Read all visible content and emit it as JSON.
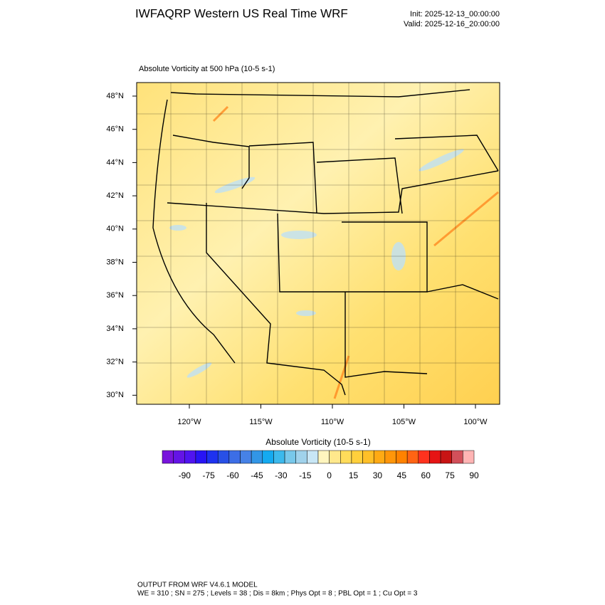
{
  "header": {
    "title": "IWFAQRP Western US Real Time WRF",
    "init": "Init: 2025-12-13_00:00:00",
    "valid": "Valid: 2025-12-16_20:00:00"
  },
  "map": {
    "title": "Absolute Vorticity at 500 hPa   (10-5 s-1)",
    "lat_labels": [
      "48°N",
      "46°N",
      "44°N",
      "42°N",
      "40°N",
      "38°N",
      "36°N",
      "34°N",
      "32°N",
      "30°N"
    ],
    "lon_labels": [
      "120°W",
      "115°W",
      "110°W",
      "105°W",
      "100°W"
    ]
  },
  "colorbar": {
    "title": "Absolute Vorticity  (10-5 s-1)",
    "labels": [
      -90,
      -75,
      -60,
      -45,
      -30,
      -15,
      0,
      15,
      30,
      45,
      60,
      75,
      90
    ],
    "colors": [
      "#7814dc",
      "#6414e6",
      "#5014f0",
      "#2814f5",
      "#1e32f0",
      "#2850e6",
      "#3c6ee6",
      "#4682e6",
      "#3296e6",
      "#14aaf0",
      "#3cb9ec",
      "#78c8ea",
      "#a0d2eb",
      "#c8e6f5",
      "#fff5be",
      "#ffe88c",
      "#ffdc5a",
      "#ffd03c",
      "#ffc028",
      "#ffaa14",
      "#ff960a",
      "#ff8200",
      "#ff6414",
      "#ff321e",
      "#e61414",
      "#c81414",
      "#d2505a",
      "#ffb4b4"
    ]
  },
  "footer": {
    "line1": "OUTPUT FROM WRF V4.6.1 MODEL",
    "line2": "WE = 310 ; SN = 275 ; Levels = 38 ; Dis = 8km ; Phys Opt = 8 ; PBL Opt = 1 ; Cu Opt = 3"
  }
}
